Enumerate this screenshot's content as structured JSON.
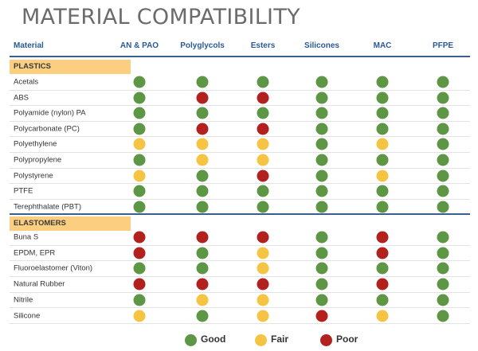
{
  "title": "MATERIAL COMPATIBILITY",
  "headers": [
    "Material",
    "AN & PAO",
    "Polyglycols",
    "Esters",
    "Silicones",
    "MAC",
    "PFPE"
  ],
  "colors": {
    "G": "#5d9645",
    "F": "#f6c443",
    "P": "#b3211f"
  },
  "sections": [
    {
      "name": "PLASTICS",
      "rows": [
        {
          "material": "Acetals",
          "ratings": [
            "G",
            "G",
            "G",
            "G",
            "G",
            "G"
          ]
        },
        {
          "material": "ABS",
          "ratings": [
            "G",
            "P",
            "P",
            "G",
            "G",
            "G"
          ]
        },
        {
          "material": "Polyamide (nylon) PA",
          "ratings": [
            "G",
            "G",
            "G",
            "G",
            "G",
            "G"
          ]
        },
        {
          "material": "Polycarbonate (PC)",
          "ratings": [
            "G",
            "P",
            "P",
            "G",
            "G",
            "G"
          ]
        },
        {
          "material": "Polyethylene",
          "ratings": [
            "F",
            "F",
            "F",
            "G",
            "F",
            "G"
          ]
        },
        {
          "material": "Polypropylene",
          "ratings": [
            "G",
            "F",
            "F",
            "G",
            "G",
            "G"
          ]
        },
        {
          "material": "Polystyrene",
          "ratings": [
            "F",
            "G",
            "P",
            "G",
            "F",
            "G"
          ]
        },
        {
          "material": "PTFE",
          "ratings": [
            "G",
            "G",
            "G",
            "G",
            "G",
            "G"
          ]
        },
        {
          "material": "Terephthalate (PBT)",
          "ratings": [
            "G",
            "G",
            "G",
            "G",
            "G",
            "G"
          ]
        }
      ]
    },
    {
      "name": "ELASTOMERS",
      "rows": [
        {
          "material": "Buna S",
          "ratings": [
            "P",
            "P",
            "P",
            "G",
            "P",
            "G"
          ]
        },
        {
          "material": "EPDM, EPR",
          "ratings": [
            "P",
            "G",
            "F",
            "G",
            "P",
            "G"
          ]
        },
        {
          "material": "Fluoroelastomer (Viton)",
          "ratings": [
            "G",
            "G",
            "F",
            "G",
            "G",
            "G"
          ]
        },
        {
          "material": "Natural Rubber",
          "ratings": [
            "P",
            "P",
            "P",
            "G",
            "P",
            "G"
          ]
        },
        {
          "material": "Nitrile",
          "ratings": [
            "G",
            "F",
            "F",
            "G",
            "G",
            "G"
          ]
        },
        {
          "material": "Silicone",
          "ratings": [
            "F",
            "G",
            "F",
            "P",
            "F",
            "G"
          ]
        }
      ]
    }
  ],
  "legend": [
    {
      "key": "G",
      "label": "Good"
    },
    {
      "key": "F",
      "label": "Fair"
    },
    {
      "key": "P",
      "label": "Poor"
    }
  ]
}
